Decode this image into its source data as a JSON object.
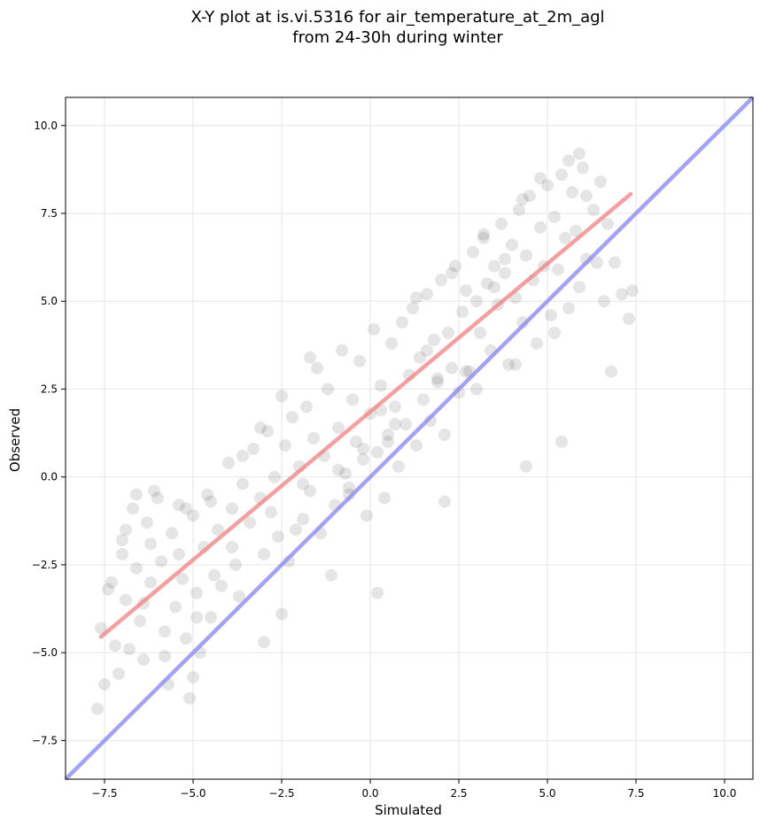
{
  "chart_data": {
    "type": "scatter",
    "title_lines": [
      "X-Y plot at is.vi.5316 for air_temperature_at_2m_agl",
      "from 24-30h during winter"
    ],
    "xlabel": "Simulated",
    "ylabel": "Observed",
    "xlim": [
      -8.6,
      10.8
    ],
    "ylim": [
      -8.6,
      10.8
    ],
    "x_ticks": [
      -7.5,
      -5.0,
      -2.5,
      0.0,
      2.5,
      5.0,
      7.5,
      10.0
    ],
    "y_ticks": [
      -7.5,
      -5.0,
      -2.5,
      0.0,
      2.5,
      5.0,
      7.5,
      10.0
    ],
    "x_tick_labels": [
      "−7.5",
      "−5.0",
      "−2.5",
      "0.0",
      "2.5",
      "5.0",
      "7.5",
      "10.0"
    ],
    "y_tick_labels": [
      "−7.5",
      "−5.0",
      "−2.5",
      "0.0",
      "2.5",
      "5.0",
      "7.5",
      "10.0"
    ],
    "grid": true,
    "point_color": "#000000",
    "point_alpha": 0.1,
    "series": [
      {
        "kind": "points",
        "approximate": true,
        "x": [
          -7.6,
          -7.5,
          -7.4,
          -7.2,
          -7.1,
          -7.0,
          -6.9,
          -6.8,
          -6.7,
          -6.6,
          -6.5,
          -6.4,
          -6.3,
          -6.2,
          -6.0,
          -5.9,
          -5.8,
          -5.7,
          -5.6,
          -5.5,
          -5.4,
          -5.3,
          -5.2,
          -5.1,
          -5.0,
          -4.9,
          -4.8,
          -4.7,
          -4.6,
          -4.5,
          -4.3,
          -4.2,
          -4.0,
          -3.9,
          -3.8,
          -3.7,
          -3.6,
          -3.4,
          -3.3,
          -3.1,
          -3.0,
          -2.9,
          -2.8,
          -2.7,
          -2.6,
          -2.5,
          -2.4,
          -2.3,
          -2.2,
          -2.0,
          -1.9,
          -1.8,
          -1.7,
          -1.6,
          -1.5,
          -1.4,
          -1.3,
          -1.2,
          -1.0,
          -0.9,
          -0.8,
          -0.7,
          -0.6,
          -0.5,
          -0.4,
          -0.3,
          -0.2,
          -0.1,
          0.0,
          0.1,
          0.2,
          0.3,
          0.4,
          0.5,
          0.6,
          0.7,
          0.8,
          0.9,
          1.0,
          1.1,
          1.2,
          1.3,
          1.4,
          1.5,
          1.6,
          1.7,
          1.8,
          1.9,
          2.0,
          2.1,
          2.2,
          2.3,
          2.4,
          2.5,
          2.6,
          2.7,
          2.8,
          2.9,
          3.0,
          3.1,
          3.2,
          3.3,
          3.4,
          3.5,
          3.6,
          3.7,
          3.8,
          3.9,
          4.0,
          4.1,
          4.2,
          4.3,
          4.4,
          4.5,
          4.6,
          4.7,
          4.8,
          4.9,
          5.0,
          5.1,
          5.2,
          5.3,
          5.4,
          5.5,
          5.6,
          5.7,
          5.8,
          5.9,
          6.0,
          6.1,
          6.3,
          6.5,
          6.7,
          6.9,
          7.1,
          7.3,
          -7.3,
          -6.9,
          -6.4,
          -6.1,
          -5.4,
          -4.9,
          -4.5,
          -3.6,
          -2.5,
          -1.7,
          -0.6,
          0.3,
          1.3,
          2.3,
          3.2,
          4.3,
          5.2,
          6.1,
          -7.0,
          -6.2,
          -5.8,
          -4.4,
          -3.1,
          -1.9,
          -0.2,
          0.7,
          1.6,
          2.7,
          3.8,
          4.8,
          5.6,
          6.6,
          -6.6,
          -5.2,
          -3.9,
          -2.1,
          -0.9,
          0.5,
          1.9,
          3.5,
          4.1,
          5.9,
          6.8,
          7.4,
          -7.7,
          -5.0,
          -3.0,
          -1.1,
          0.2,
          2.1,
          3.0,
          4.4,
          5.4,
          6.4
        ],
        "y": [
          -4.3,
          -5.9,
          -3.2,
          -4.8,
          -5.6,
          -1.8,
          -3.5,
          -4.9,
          -0.9,
          -2.6,
          -4.1,
          -5.2,
          -1.3,
          -3.0,
          -0.6,
          -2.4,
          -4.4,
          -5.9,
          -1.6,
          -3.7,
          -0.8,
          -2.9,
          -4.6,
          -6.3,
          -1.1,
          -3.3,
          -5.0,
          -2.0,
          -0.5,
          -4.0,
          -1.5,
          -3.1,
          0.4,
          -0.9,
          -2.5,
          -3.4,
          -0.2,
          -1.3,
          0.8,
          -0.6,
          -2.2,
          1.3,
          -1.0,
          0.0,
          -1.7,
          -3.9,
          0.9,
          -2.4,
          1.7,
          0.3,
          -1.2,
          2.0,
          -0.4,
          1.1,
          3.1,
          -1.6,
          0.6,
          2.5,
          -0.8,
          1.4,
          3.6,
          0.1,
          -0.5,
          2.2,
          1.0,
          3.3,
          0.5,
          -1.1,
          1.8,
          4.2,
          0.7,
          2.6,
          -0.6,
          1.2,
          3.8,
          2.0,
          0.3,
          4.4,
          1.5,
          2.9,
          4.8,
          0.9,
          3.4,
          2.2,
          5.2,
          1.6,
          3.9,
          2.7,
          5.6,
          1.2,
          4.1,
          3.1,
          6.0,
          2.4,
          4.7,
          5.3,
          3.0,
          6.4,
          5.0,
          4.1,
          6.9,
          5.5,
          3.6,
          6.0,
          4.9,
          7.2,
          5.8,
          3.2,
          6.6,
          5.1,
          7.6,
          4.4,
          6.3,
          8.0,
          5.6,
          3.8,
          7.1,
          6.0,
          8.3,
          4.6,
          7.4,
          5.9,
          8.6,
          6.8,
          4.8,
          8.1,
          7.0,
          5.4,
          8.8,
          6.2,
          7.6,
          8.4,
          7.2,
          6.1,
          5.2,
          4.5,
          -3.0,
          -1.5,
          -3.6,
          -0.4,
          -2.2,
          -4.0,
          -0.7,
          0.6,
          2.3,
          3.4,
          -0.3,
          1.9,
          5.1,
          5.8,
          6.8,
          7.9,
          4.1,
          8.0,
          -2.2,
          -1.9,
          -5.1,
          -2.8,
          1.4,
          -0.2,
          0.8,
          1.5,
          3.6,
          3.0,
          6.2,
          8.5,
          9.0,
          5.0,
          -0.5,
          -0.9,
          -2.0,
          -1.5,
          0.2,
          1.0,
          2.8,
          5.4,
          3.2,
          9.2,
          3.0,
          5.3,
          -6.6,
          -5.7,
          -4.7,
          -2.8,
          -3.3,
          -0.7,
          2.5,
          0.3,
          1.0,
          6.1
        ]
      },
      {
        "kind": "fit_line",
        "x": [
          -7.6,
          7.35
        ],
        "y": [
          -4.55,
          8.05
        ]
      },
      {
        "kind": "identity_line",
        "x": [
          -8.6,
          10.8
        ],
        "y": [
          -8.6,
          10.8
        ]
      }
    ],
    "colors": {
      "fit_line": "#f08080",
      "identity_line": "#8c8cf0",
      "grid": "#e6e6e6"
    }
  }
}
